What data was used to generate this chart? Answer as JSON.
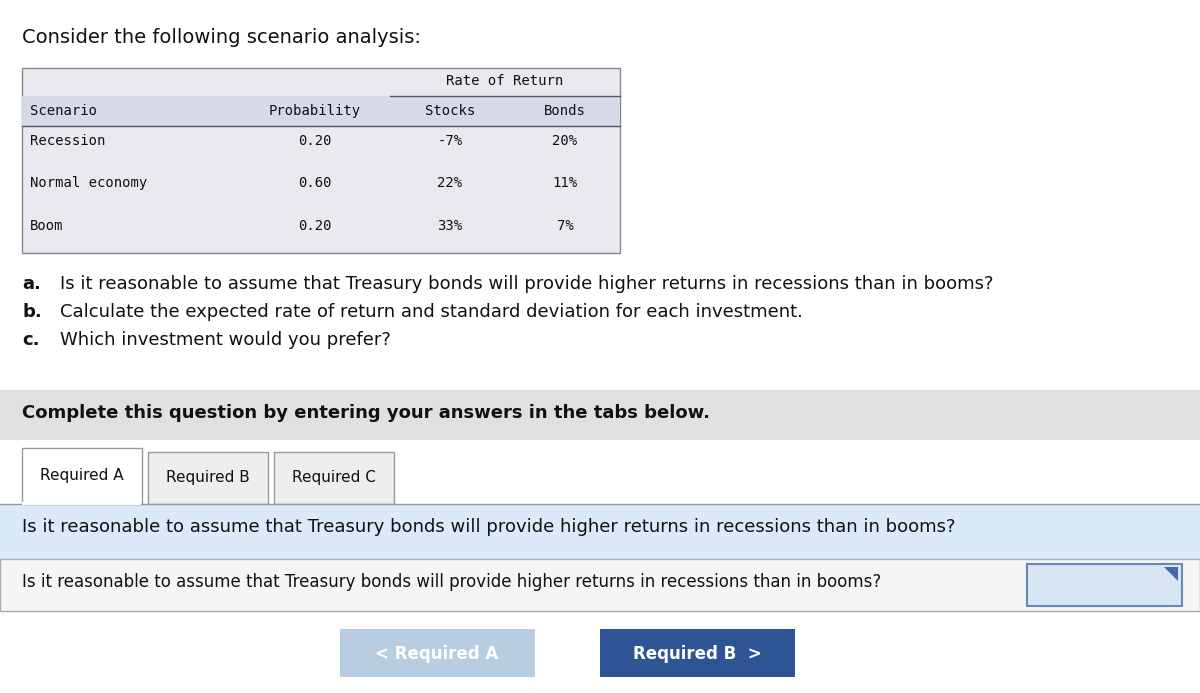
{
  "title": "Consider the following scenario analysis:",
  "table": {
    "header_rate_return": "Rate of Return",
    "col_headers": [
      "Scenario",
      "Probability",
      "Stocks",
      "Bonds"
    ],
    "rows": [
      [
        "Recession",
        "0.20",
        "-7%",
        "20%"
      ],
      [
        "Normal economy",
        "0.60",
        "22%",
        "11%"
      ],
      [
        "Boom",
        "0.20",
        "33%",
        "7%"
      ]
    ],
    "header_bg": "#d5d9e8",
    "table_bg": "#e8eaf0"
  },
  "questions": [
    {
      "letter": "a.",
      "text": "Is it reasonable to assume that Treasury bonds will provide higher returns in recessions than in booms?"
    },
    {
      "letter": "b.",
      "text": "Calculate the expected rate of return and standard deviation for each investment."
    },
    {
      "letter": "c.",
      "text": "Which investment would you prefer?"
    }
  ],
  "complete_box": {
    "text": "Complete this question by entering your answers in the tabs below.",
    "bg": "#e0e0e0"
  },
  "tabs": [
    "Required A",
    "Required B",
    "Required C"
  ],
  "active_tab": 0,
  "question_banner": {
    "text": "Is it reasonable to assume that Treasury bonds will provide higher returns in recessions than in booms?",
    "bg": "#daeaf8"
  },
  "input_row": {
    "text": "Is it reasonable to assume that Treasury bonds will provide higher returns in recessions than in booms?",
    "bg": "#f5f5f5",
    "border": "#aaaaaa",
    "input_box_bg": "#d8e6f4",
    "input_box_border": "#6688bb"
  },
  "nav_buttons": [
    {
      "text": "< Required A",
      "bg": "#b8cde0",
      "text_color": "#ffffff"
    },
    {
      "text": "Required B  >",
      "bg": "#2f5496",
      "text_color": "#ffffff"
    }
  ],
  "bg_color": "#ffffff",
  "font_color": "#111111",
  "monospace_font": "DejaVu Sans Mono",
  "sans_font": "DejaVu Sans"
}
